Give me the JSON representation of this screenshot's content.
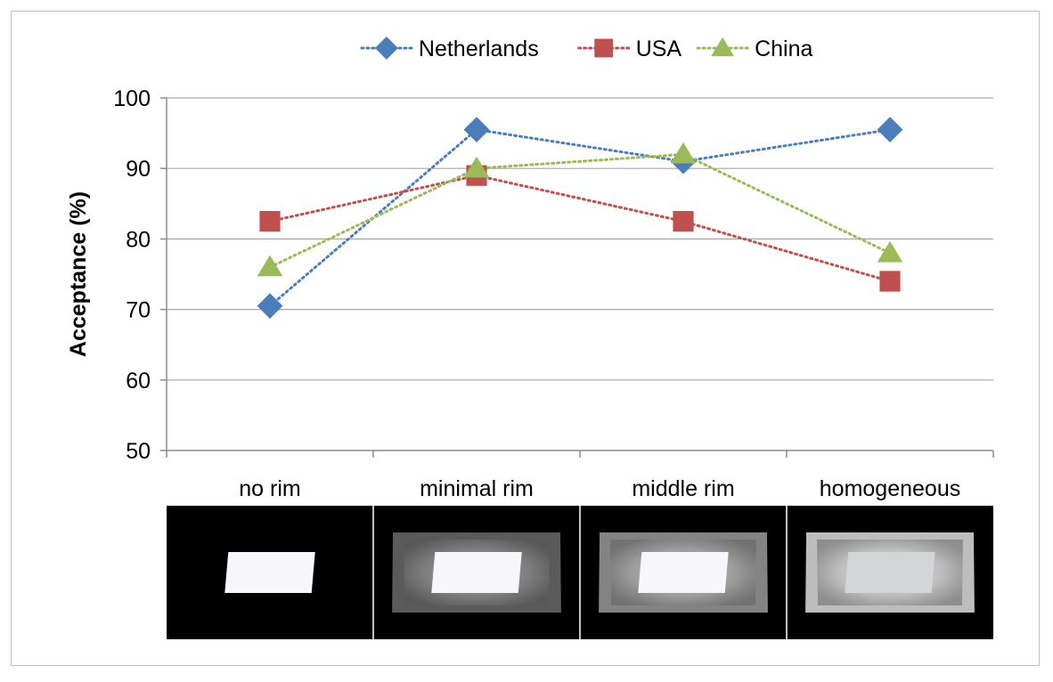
{
  "chart_data": {
    "type": "line",
    "categories": [
      "no rim",
      "minimal rim",
      "middle rim",
      "homogeneous"
    ],
    "series": [
      {
        "name": "Netherlands",
        "values": [
          70.5,
          95.5,
          91,
          95.5
        ],
        "color": "#4a7ebb",
        "marker": "diamond"
      },
      {
        "name": "USA",
        "values": [
          82.5,
          89,
          82.5,
          74
        ],
        "color": "#c0504d",
        "marker": "square"
      },
      {
        "name": "China",
        "values": [
          76,
          90,
          92,
          78
        ],
        "color": "#9bbb59",
        "marker": "triangle"
      }
    ],
    "xlabel": "",
    "ylabel": "Acceptance (%)",
    "ylim": [
      50,
      100
    ],
    "yticks": [
      50,
      60,
      70,
      80,
      90,
      100
    ],
    "grid": true,
    "legend": "top",
    "line_style": "dotted",
    "photo_strip": {
      "panels": [
        {
          "name": "no rim",
          "rim_level": 0
        },
        {
          "name": "minimal rim",
          "rim_level": 0.45
        },
        {
          "name": "middle rim",
          "rim_level": 0.7
        },
        {
          "name": "homogeneous",
          "rim_level": 1.0
        }
      ]
    }
  }
}
